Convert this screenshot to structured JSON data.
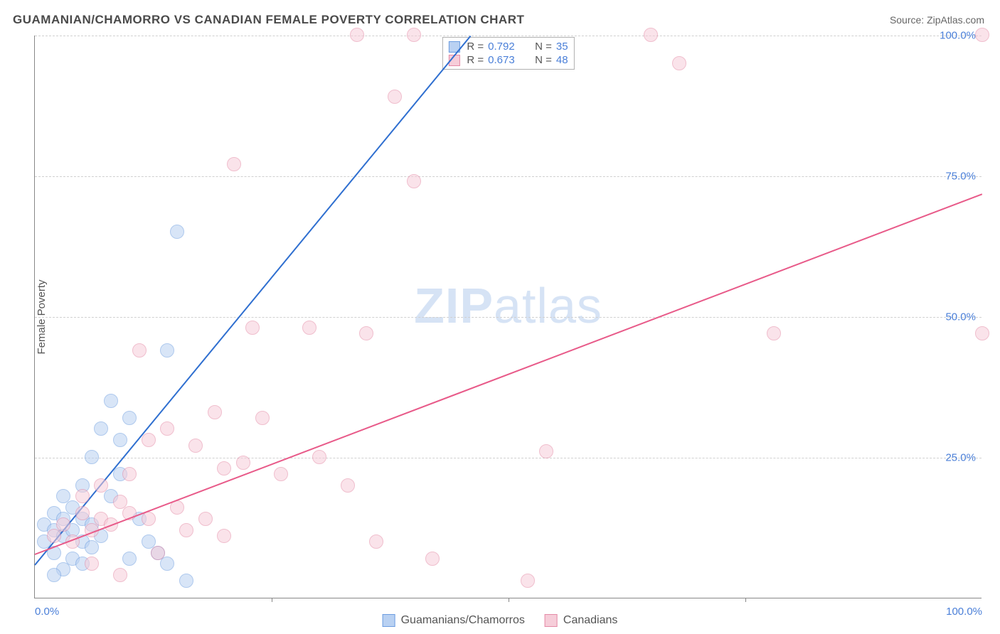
{
  "title": "GUAMANIAN/CHAMORRO VS CANADIAN FEMALE POVERTY CORRELATION CHART",
  "source": "Source: ZipAtlas.com",
  "y_axis_label": "Female Poverty",
  "watermark": {
    "zip": "ZIP",
    "atlas": "atlas"
  },
  "chart": {
    "type": "scatter",
    "xlim": [
      0,
      100
    ],
    "ylim": [
      0,
      100
    ],
    "xticks": [
      0,
      25,
      50,
      75,
      100
    ],
    "yticks": [
      25,
      50,
      75,
      100
    ],
    "xtick_labels": [
      "0.0%",
      "",
      "",
      "",
      "100.0%"
    ],
    "ytick_labels": [
      "25.0%",
      "50.0%",
      "75.0%",
      "100.0%"
    ],
    "grid_color": "#d0d0d0",
    "axis_color": "#888888",
    "background_color": "#ffffff",
    "marker_radius": 10,
    "marker_opacity": 0.55
  },
  "series": [
    {
      "name": "Guamanians/Chamorros",
      "fill_color": "#b9d1f2",
      "stroke_color": "#6d9de0",
      "line_color": "#2f6fd0",
      "r_value": "0.792",
      "n_value": "35",
      "trend": {
        "x1": 0,
        "y1": 6,
        "x2": 46,
        "y2": 100
      },
      "points": [
        [
          1,
          10
        ],
        [
          1,
          13
        ],
        [
          2,
          8
        ],
        [
          2,
          12
        ],
        [
          2,
          15
        ],
        [
          3,
          11
        ],
        [
          3,
          14
        ],
        [
          3,
          18
        ],
        [
          4,
          12
        ],
        [
          4,
          16
        ],
        [
          5,
          10
        ],
        [
          5,
          14
        ],
        [
          5,
          20
        ],
        [
          6,
          13
        ],
        [
          6,
          25
        ],
        [
          7,
          11
        ],
        [
          7,
          30
        ],
        [
          8,
          35
        ],
        [
          9,
          28
        ],
        [
          10,
          7
        ],
        [
          10,
          32
        ],
        [
          11,
          14
        ],
        [
          12,
          10
        ],
        [
          13,
          8
        ],
        [
          14,
          44
        ],
        [
          14,
          6
        ],
        [
          15,
          65
        ],
        [
          16,
          3
        ],
        [
          4,
          7
        ],
        [
          3,
          5
        ],
        [
          2,
          4
        ],
        [
          6,
          9
        ],
        [
          8,
          18
        ],
        [
          9,
          22
        ],
        [
          5,
          6
        ]
      ]
    },
    {
      "name": "Canadians",
      "fill_color": "#f6cdd9",
      "stroke_color": "#e48aa6",
      "line_color": "#e85a89",
      "r_value": "0.673",
      "n_value": "48",
      "trend": {
        "x1": 0,
        "y1": 8,
        "x2": 100,
        "y2": 72
      },
      "points": [
        [
          2,
          11
        ],
        [
          3,
          13
        ],
        [
          4,
          10
        ],
        [
          5,
          15
        ],
        [
          5,
          18
        ],
        [
          6,
          12
        ],
        [
          7,
          14
        ],
        [
          7,
          20
        ],
        [
          8,
          13
        ],
        [
          9,
          17
        ],
        [
          10,
          15
        ],
        [
          10,
          22
        ],
        [
          11,
          44
        ],
        [
          12,
          14
        ],
        [
          12,
          28
        ],
        [
          13,
          8
        ],
        [
          14,
          30
        ],
        [
          15,
          16
        ],
        [
          16,
          12
        ],
        [
          17,
          27
        ],
        [
          18,
          14
        ],
        [
          19,
          33
        ],
        [
          20,
          11
        ],
        [
          20,
          23
        ],
        [
          21,
          77
        ],
        [
          22,
          24
        ],
        [
          23,
          48
        ],
        [
          24,
          32
        ],
        [
          26,
          22
        ],
        [
          29,
          48
        ],
        [
          30,
          25
        ],
        [
          33,
          20
        ],
        [
          34,
          100
        ],
        [
          35,
          47
        ],
        [
          38,
          89
        ],
        [
          40,
          74
        ],
        [
          40,
          100
        ],
        [
          42,
          7
        ],
        [
          52,
          3
        ],
        [
          54,
          26
        ],
        [
          65,
          100
        ],
        [
          68,
          95
        ],
        [
          78,
          47
        ],
        [
          100,
          47
        ],
        [
          100,
          100
        ],
        [
          36,
          10
        ],
        [
          9,
          4
        ],
        [
          6,
          6
        ]
      ]
    }
  ],
  "bottom_legend": [
    {
      "label": "Guamanians/Chamorros",
      "fill": "#b9d1f2",
      "stroke": "#6d9de0"
    },
    {
      "label": "Canadians",
      "fill": "#f6cdd9",
      "stroke": "#e48aa6"
    }
  ]
}
